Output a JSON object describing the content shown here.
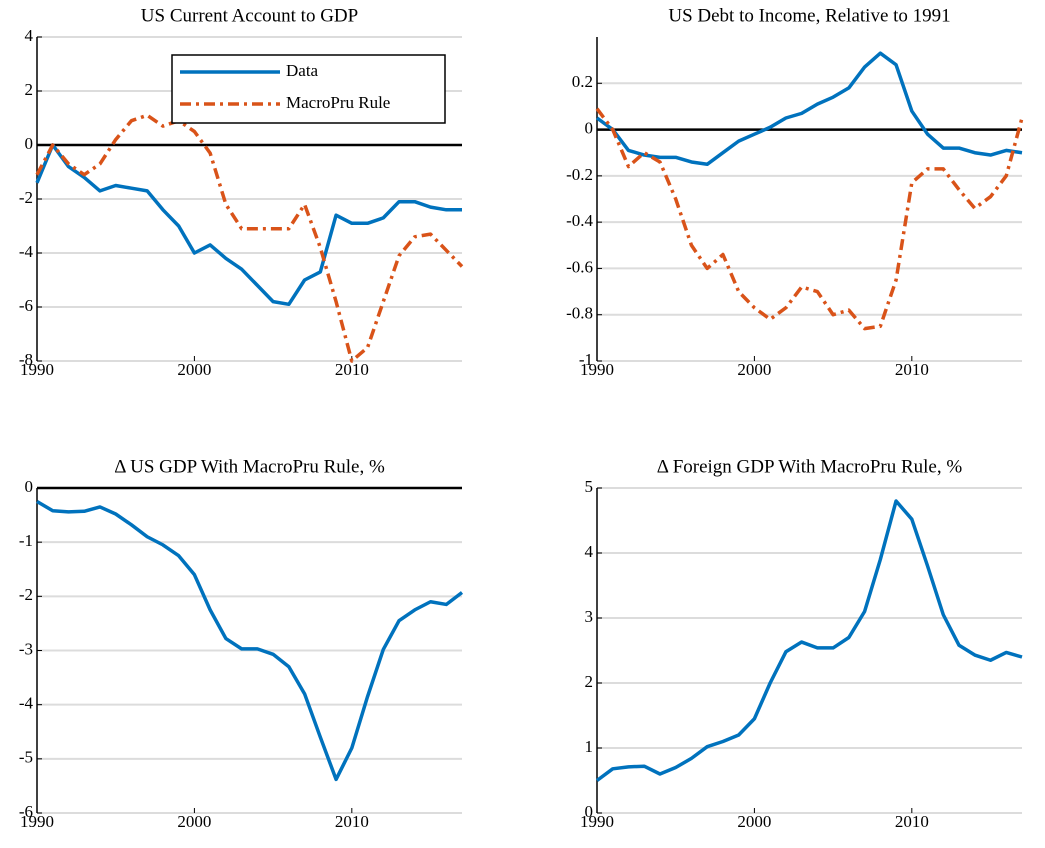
{
  "chart_data": [
    {
      "type": "line",
      "title": "US Current Account to GDP",
      "x": [
        1990,
        1991,
        1992,
        1993,
        1994,
        1995,
        1996,
        1997,
        1998,
        1999,
        2000,
        2001,
        2002,
        2003,
        2004,
        2005,
        2006,
        2007,
        2008,
        2009,
        2010,
        2011,
        2012,
        2013,
        2014,
        2015,
        2016,
        2017
      ],
      "series": [
        {
          "name": "Data",
          "color": "#0072bd",
          "dash": "solid",
          "values": [
            -1.4,
            0.0,
            -0.8,
            -1.2,
            -1.7,
            -1.5,
            -1.6,
            -1.7,
            -2.4,
            -3.0,
            -4.0,
            -3.7,
            -4.2,
            -4.6,
            -5.2,
            -5.8,
            -5.9,
            -5.0,
            -4.7,
            -2.6,
            -2.9,
            -2.9,
            -2.7,
            -2.1,
            -2.1,
            -2.3,
            -2.4,
            -2.4
          ]
        },
        {
          "name": "MacroPru Rule",
          "color": "#d95319",
          "dash": "dashdot",
          "values": [
            -1.1,
            0.0,
            -0.7,
            -1.1,
            -0.7,
            0.2,
            0.9,
            1.1,
            0.7,
            0.9,
            0.5,
            -0.3,
            -2.2,
            -3.1,
            -3.1,
            -3.1,
            -3.1,
            -2.2,
            -3.8,
            -5.8,
            -8.0,
            -7.5,
            -5.8,
            -4.1,
            -3.4,
            -3.3,
            -3.9,
            -4.5
          ]
        }
      ],
      "xlim": [
        1990,
        2017
      ],
      "xticks": [
        1990,
        2000,
        2010
      ],
      "ylim": [
        -8,
        4
      ],
      "yticks": [
        -8,
        -6,
        -4,
        -2,
        0,
        2,
        4
      ],
      "grid": true,
      "zero_line": true,
      "legend": "northeast"
    },
    {
      "type": "line",
      "title": "US Debt to Income, Relative to 1991",
      "x": [
        1990,
        1991,
        1992,
        1993,
        1994,
        1995,
        1996,
        1997,
        1998,
        1999,
        2000,
        2001,
        2002,
        2003,
        2004,
        2005,
        2006,
        2007,
        2008,
        2009,
        2010,
        2011,
        2012,
        2013,
        2014,
        2015,
        2016,
        2017
      ],
      "series": [
        {
          "color": "#0072bd",
          "dash": "solid",
          "values": [
            0.05,
            0.0,
            -0.09,
            -0.11,
            -0.12,
            -0.12,
            -0.14,
            -0.15,
            -0.1,
            -0.05,
            -0.02,
            0.01,
            0.05,
            0.07,
            0.11,
            0.14,
            0.18,
            0.27,
            0.33,
            0.28,
            0.08,
            -0.02,
            -0.08,
            -0.08,
            -0.1,
            -0.11,
            -0.09,
            -0.1
          ]
        },
        {
          "color": "#d95319",
          "dash": "dashdot",
          "values": [
            0.09,
            0.0,
            -0.16,
            -0.1,
            -0.14,
            -0.3,
            -0.5,
            -0.6,
            -0.54,
            -0.7,
            -0.77,
            -0.82,
            -0.77,
            -0.68,
            -0.7,
            -0.8,
            -0.78,
            -0.86,
            -0.85,
            -0.65,
            -0.23,
            -0.17,
            -0.17,
            -0.26,
            -0.34,
            -0.29,
            -0.2,
            0.05
          ]
        }
      ],
      "xlim": [
        1990,
        2017
      ],
      "xticks": [
        1990,
        2000,
        2010
      ],
      "ylim": [
        -1,
        0.4
      ],
      "yticks": [
        -1,
        -0.8,
        -0.6,
        -0.4,
        -0.2,
        0,
        0.2
      ],
      "grid": true,
      "zero_line": true
    },
    {
      "type": "line",
      "title": "Δ US GDP With MacroPru Rule, %",
      "x": [
        1990,
        1991,
        1992,
        1993,
        1994,
        1995,
        1996,
        1997,
        1998,
        1999,
        2000,
        2001,
        2002,
        2003,
        2004,
        2005,
        2006,
        2007,
        2008,
        2009,
        2010,
        2011,
        2012,
        2013,
        2014,
        2015,
        2016,
        2017
      ],
      "color": "#0072bd",
      "values": [
        -0.25,
        -0.42,
        -0.44,
        -0.43,
        -0.35,
        -0.48,
        -0.68,
        -0.9,
        -1.05,
        -1.25,
        -1.6,
        -2.25,
        -2.78,
        -2.97,
        -2.97,
        -3.07,
        -3.3,
        -3.8,
        -4.6,
        -5.38,
        -4.8,
        -3.85,
        -2.98,
        -2.45,
        -2.25,
        -2.1,
        -2.15,
        -1.93
      ],
      "xlim": [
        1990,
        2017
      ],
      "xticks": [
        1990,
        2000,
        2010
      ],
      "ylim": [
        -6,
        0
      ],
      "yticks": [
        -6,
        -5,
        -4,
        -3,
        -2,
        -1,
        0
      ],
      "grid": true,
      "zero_line": true
    },
    {
      "type": "line",
      "title": "Δ Foreign GDP With MacroPru Rule, %",
      "x": [
        1990,
        1991,
        1992,
        1993,
        1994,
        1995,
        1996,
        1997,
        1998,
        1999,
        2000,
        2001,
        2002,
        2003,
        2004,
        2005,
        2006,
        2007,
        2008,
        2009,
        2010,
        2011,
        2012,
        2013,
        2014,
        2015,
        2016,
        2017
      ],
      "color": "#0072bd",
      "values": [
        0.5,
        0.68,
        0.71,
        0.72,
        0.6,
        0.7,
        0.84,
        1.02,
        1.1,
        1.2,
        1.45,
        2.0,
        2.48,
        2.63,
        2.54,
        2.54,
        2.7,
        3.1,
        3.9,
        4.8,
        4.52,
        3.8,
        3.05,
        2.58,
        2.43,
        2.35,
        2.47,
        2.4
      ],
      "xlim": [
        1990,
        2017
      ],
      "xticks": [
        1990,
        2000,
        2010
      ],
      "ylim": [
        0,
        5
      ],
      "yticks": [
        0,
        1,
        2,
        3,
        4,
        5
      ],
      "grid": true,
      "zero_line": false
    }
  ]
}
